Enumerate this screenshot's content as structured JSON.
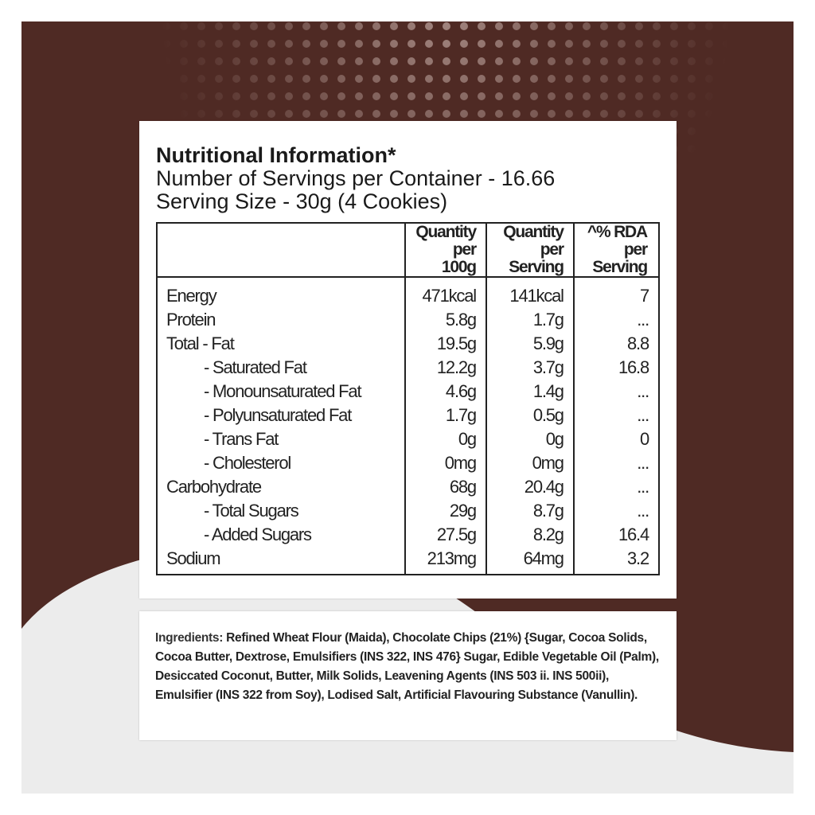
{
  "header": {
    "title": "Nutritional Information*",
    "servings": "Number of Servings per Container - 16.66",
    "serving_size": "Serving Size - 30g  (4 Cookies)"
  },
  "table": {
    "columns": [
      [
        "Quantity",
        "per 100g"
      ],
      [
        "Quantity",
        "per Serving"
      ],
      [
        "^% RDA",
        "per Serving"
      ]
    ],
    "rows": [
      [
        "Energy",
        "471kcal",
        "141kcal",
        "7"
      ],
      [
        "Protein",
        "5.8g",
        "1.7g",
        "..."
      ],
      [
        "Total - Fat",
        "19.5g",
        "5.9g",
        "8.8"
      ],
      [
        "- Saturated Fat",
        "12.2g",
        "3.7g",
        "16.8"
      ],
      [
        "- Monounsaturated Fat",
        "4.6g",
        "1.4g",
        "..."
      ],
      [
        "- Polyunsaturated Fat",
        "1.7g",
        "0.5g",
        "..."
      ],
      [
        "- Trans Fat",
        "0g",
        "0g",
        "0"
      ],
      [
        "- Cholesterol",
        "0mg",
        "0mg",
        "..."
      ],
      [
        "Carbohydrate",
        "68g",
        "20.4g",
        "..."
      ],
      [
        "- Total Sugars",
        "29g",
        "8.7g",
        "..."
      ],
      [
        "- Added Sugars",
        "27.5g",
        "8.2g",
        "16.4"
      ],
      [
        "Sodium",
        "213mg",
        "64mg",
        "3.2"
      ]
    ]
  },
  "ingredients": {
    "label": "Ingredients:",
    "text": "Refined Wheat Flour (Maida), Chocolate Chips (21%)  {Sugar, Cocoa Solids, Cocoa Butter, Dextrose, Emulsifiers (INS 322, INS 476} Sugar, Edible Vegetable Oil (Palm), Desiccated Coconut, Butter, Milk Solids, Leavening Agents (INS 503 ii. INS 500ii), Emulsifier (INS 322 from Soy), Lodised Salt, Artificial Flavouring Substance (Vanullin)."
  }
}
